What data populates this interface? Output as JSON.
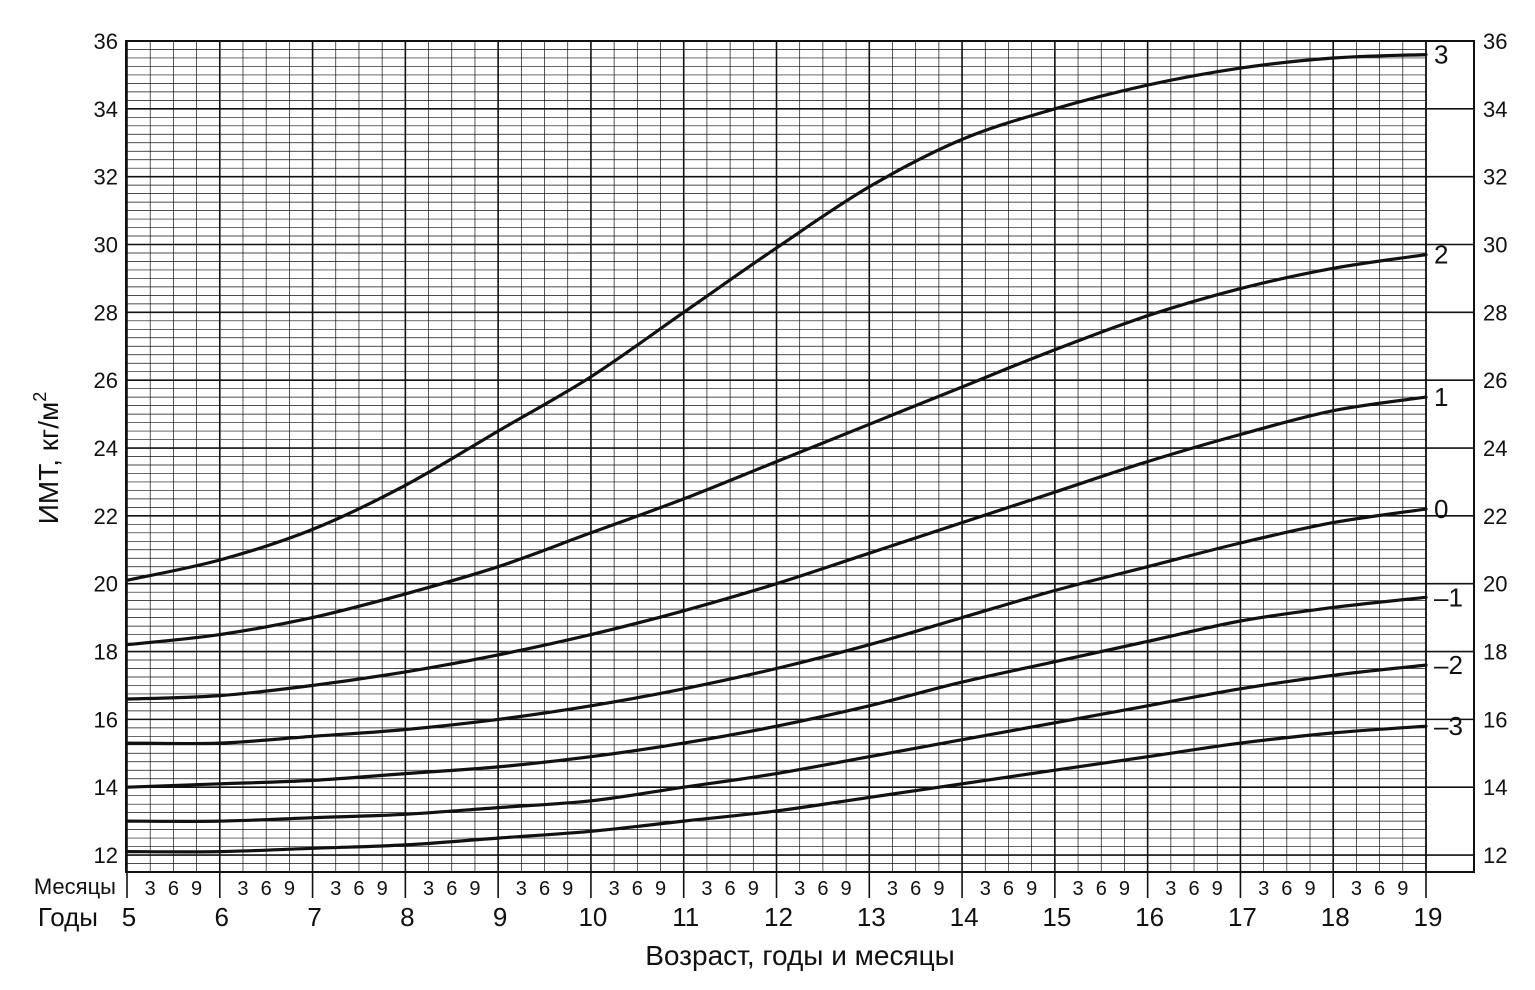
{
  "chart_data": {
    "type": "line",
    "title": "",
    "xlabel": "Возраст, годы и месяцы",
    "ylabel": "ИМТ, кг/м²",
    "ylabel_main": "ИМТ, кг/м",
    "ylabel_sup": "2",
    "xlim": [
      5,
      19
    ],
    "ylim": [
      11.5,
      36
    ],
    "y_ticks": [
      12,
      14,
      16,
      18,
      20,
      22,
      24,
      26,
      28,
      30,
      32,
      34,
      36
    ],
    "x_year_ticks": [
      5,
      6,
      7,
      8,
      9,
      10,
      11,
      12,
      13,
      14,
      15,
      16,
      17,
      18,
      19
    ],
    "month_ticks": [
      "3",
      "6",
      "9"
    ],
    "row_label_months": "Месяцы",
    "row_label_years": "Годы",
    "grid": true,
    "x": [
      5,
      6,
      7,
      8,
      9,
      10,
      11,
      12,
      13,
      14,
      15,
      16,
      17,
      18,
      19
    ],
    "series": [
      {
        "name": "3",
        "label": "3",
        "values": [
          20.1,
          20.7,
          21.6,
          22.9,
          24.5,
          26.1,
          28.0,
          29.9,
          31.7,
          33.1,
          34.0,
          34.7,
          35.2,
          35.5,
          35.6
        ]
      },
      {
        "name": "2",
        "label": "2",
        "values": [
          18.2,
          18.5,
          19.0,
          19.7,
          20.5,
          21.5,
          22.5,
          23.6,
          24.7,
          25.8,
          26.9,
          27.9,
          28.7,
          29.3,
          29.7
        ]
      },
      {
        "name": "1",
        "label": "1",
        "values": [
          16.6,
          16.7,
          17.0,
          17.4,
          17.9,
          18.5,
          19.2,
          20.0,
          20.9,
          21.8,
          22.7,
          23.6,
          24.4,
          25.1,
          25.5
        ]
      },
      {
        "name": "0",
        "label": "0",
        "values": [
          15.3,
          15.3,
          15.5,
          15.7,
          16.0,
          16.4,
          16.9,
          17.5,
          18.2,
          19.0,
          19.8,
          20.5,
          21.2,
          21.8,
          22.2
        ]
      },
      {
        "name": "–1",
        "label": "–1",
        "values": [
          14.0,
          14.1,
          14.2,
          14.4,
          14.6,
          14.9,
          15.3,
          15.8,
          16.4,
          17.1,
          17.7,
          18.3,
          18.9,
          19.3,
          19.6
        ]
      },
      {
        "name": "–2",
        "label": "–2",
        "values": [
          13.0,
          13.0,
          13.1,
          13.2,
          13.4,
          13.6,
          14.0,
          14.4,
          14.9,
          15.4,
          15.9,
          16.4,
          16.9,
          17.3,
          17.6
        ]
      },
      {
        "name": "–3",
        "label": "–3",
        "values": [
          12.1,
          12.1,
          12.2,
          12.3,
          12.5,
          12.7,
          13.0,
          13.3,
          13.7,
          14.1,
          14.5,
          14.9,
          15.3,
          15.6,
          15.8
        ]
      }
    ]
  }
}
